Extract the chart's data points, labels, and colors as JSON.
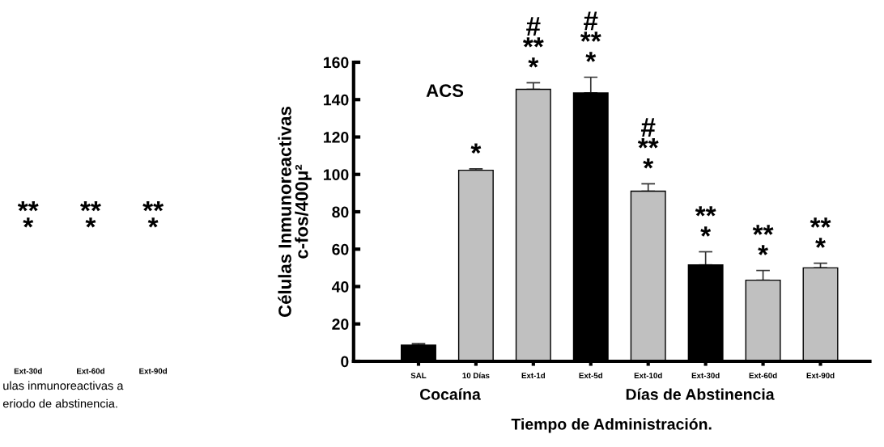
{
  "chart_data": [
    {
      "type": "other",
      "categories": [
        "Ext-30d",
        "Ext-60d",
        "Ext-90d"
      ],
      "annotations": [
        "**\n*",
        "**\n*",
        "**\n*",
        "ulas inmunoreactivas a",
        "eriodo de abstinencia."
      ]
    },
    {
      "type": "bar",
      "title": "ACS",
      "ylabel": "Células Inmunoreactivas\nc-fos/400μ²",
      "xlabel": "Tiempo de Administración.",
      "categories": [
        "SAL",
        "10 Días",
        "Ext-1d",
        "Ext-5d",
        "Ext-10d",
        "Ext-30d",
        "Ext-60d",
        "Ext-90d"
      ],
      "values": [
        8.7,
        102.2,
        145.5,
        143.6,
        91,
        51.6,
        43.4,
        50
      ],
      "errors": [
        [
          8.7,
          9.5
        ],
        [
          102.2,
          103
        ],
        [
          145.5,
          149
        ],
        [
          143.6,
          152
        ],
        [
          91,
          95
        ],
        [
          51.6,
          58.6
        ],
        [
          43.4,
          48.6
        ],
        [
          50,
          52.5
        ]
      ],
      "colors": [
        "#000000",
        "#c0c0c0",
        "#c0c0c0",
        "#000000",
        "#c0c0c0",
        "#000000",
        "#c0c0c0",
        "#c0c0c0"
      ],
      "ylim": [
        0,
        160
      ],
      "yticks": [
        0,
        20,
        40,
        60,
        80,
        100,
        120,
        140,
        160
      ],
      "grid": false,
      "legend": false,
      "annotations": [
        {
          "text": "*",
          "x": "10 Días",
          "y": 103
        },
        {
          "text": "#\n**\n*",
          "x": "Ext-1d",
          "y": 149
        },
        {
          "text": "#\n**\n*",
          "x": "Ext-5d",
          "y": 152
        },
        {
          "text": "#\n**\n*",
          "x": "Ext-10d",
          "y": 95
        },
        {
          "text": "**\n*",
          "x": "Ext-30d",
          "y": 58.6
        },
        {
          "text": "**\n*",
          "x": "Ext-60d",
          "y": 48.6
        },
        {
          "text": "**\n*",
          "x": "Ext-90d",
          "y": 52.5
        },
        "Cocaína",
        "Días de Abstinencia"
      ]
    }
  ]
}
